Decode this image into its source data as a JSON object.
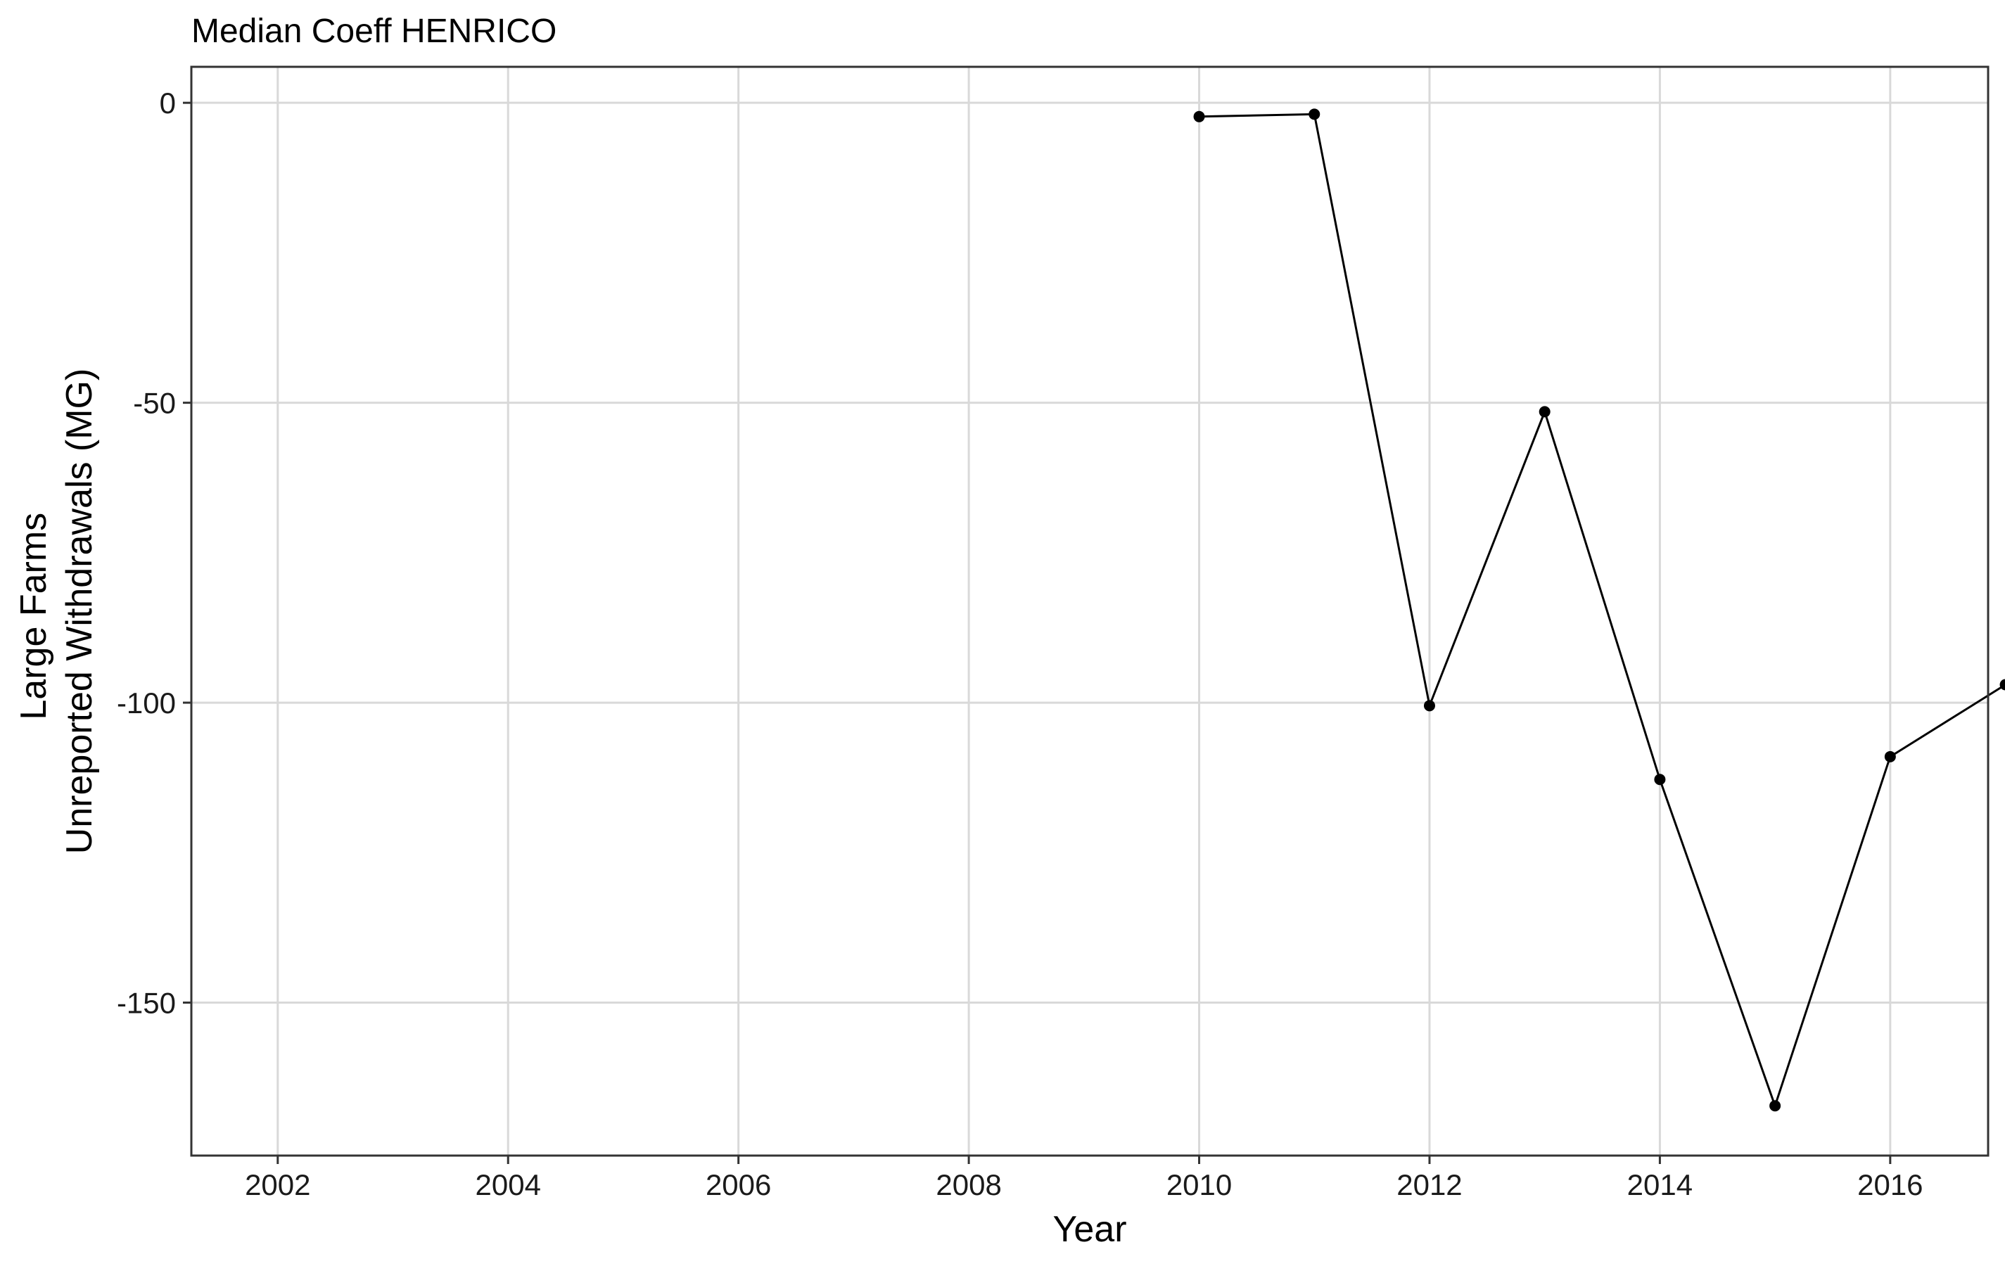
{
  "chart_data": {
    "type": "line",
    "title": "Median Coeff HENRICO",
    "xlabel": "Year",
    "ylabel_lines": [
      "Large Farms",
      "Unreported Withdrawals (MG)"
    ],
    "xlim": [
      2001.25,
      2016.85
    ],
    "ylim": [
      -175.5,
      6
    ],
    "x_ticks": [
      2002,
      2004,
      2006,
      2008,
      2010,
      2012,
      2014,
      2016
    ],
    "x_tick_labels": [
      "2002",
      "2004",
      "2006",
      "2008",
      "2010",
      "2012",
      "2014",
      "2016"
    ],
    "y_ticks": [
      0,
      -50,
      -100,
      -150
    ],
    "y_tick_labels": [
      "0",
      "-50",
      "-100",
      "-150"
    ],
    "grid": true,
    "legend": "none",
    "colors": {
      "line": "#000000",
      "grid": "#d9d9d9",
      "border": "#333333",
      "background": "#ffffff"
    },
    "series": [
      {
        "x": [
          2010.0,
          2011.0,
          2012.0,
          2013.0,
          2014.0,
          2015.0,
          2016.0,
          2017.0
        ],
        "y": [
          -2.3,
          -1.9,
          -100.5,
          -51.5,
          -112.8,
          -167.2,
          -109.0,
          -97.0
        ]
      }
    ]
  }
}
